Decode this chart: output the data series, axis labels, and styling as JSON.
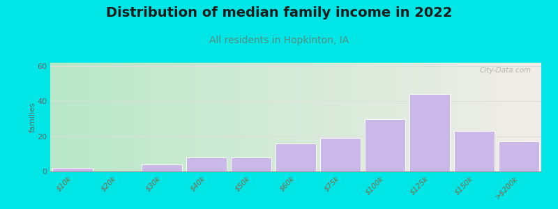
{
  "title": "Distribution of median family income in 2022",
  "subtitle": "All residents in Hopkinton, IA",
  "categories": [
    "$10k",
    "$20k",
    "$30k",
    "$40k",
    "$50k",
    "$60k",
    "$75k",
    "$100k",
    "$125k",
    "$150k",
    ">$200k"
  ],
  "values": [
    2,
    0,
    4,
    8,
    8,
    16,
    19,
    30,
    44,
    23,
    17
  ],
  "bar_color": "#c9b8e8",
  "bar_edge_color": "#ffffff",
  "background_color": "#00e5e5",
  "plot_bg_gradient_left": "#b8e8c8",
  "plot_bg_gradient_right": "#f2ede8",
  "title_color": "#1a1a1a",
  "subtitle_color": "#5a8a80",
  "ylabel": "families",
  "ylabel_color": "#666666",
  "yticks": [
    0,
    20,
    40,
    60
  ],
  "ylim": [
    0,
    62
  ],
  "grid_color": "#dddddd",
  "watermark_text": "City-Data.com",
  "tick_label_color": "#886644",
  "title_fontsize": 14,
  "subtitle_fontsize": 10,
  "ylabel_fontsize": 8,
  "tick_fontsize": 7.5
}
